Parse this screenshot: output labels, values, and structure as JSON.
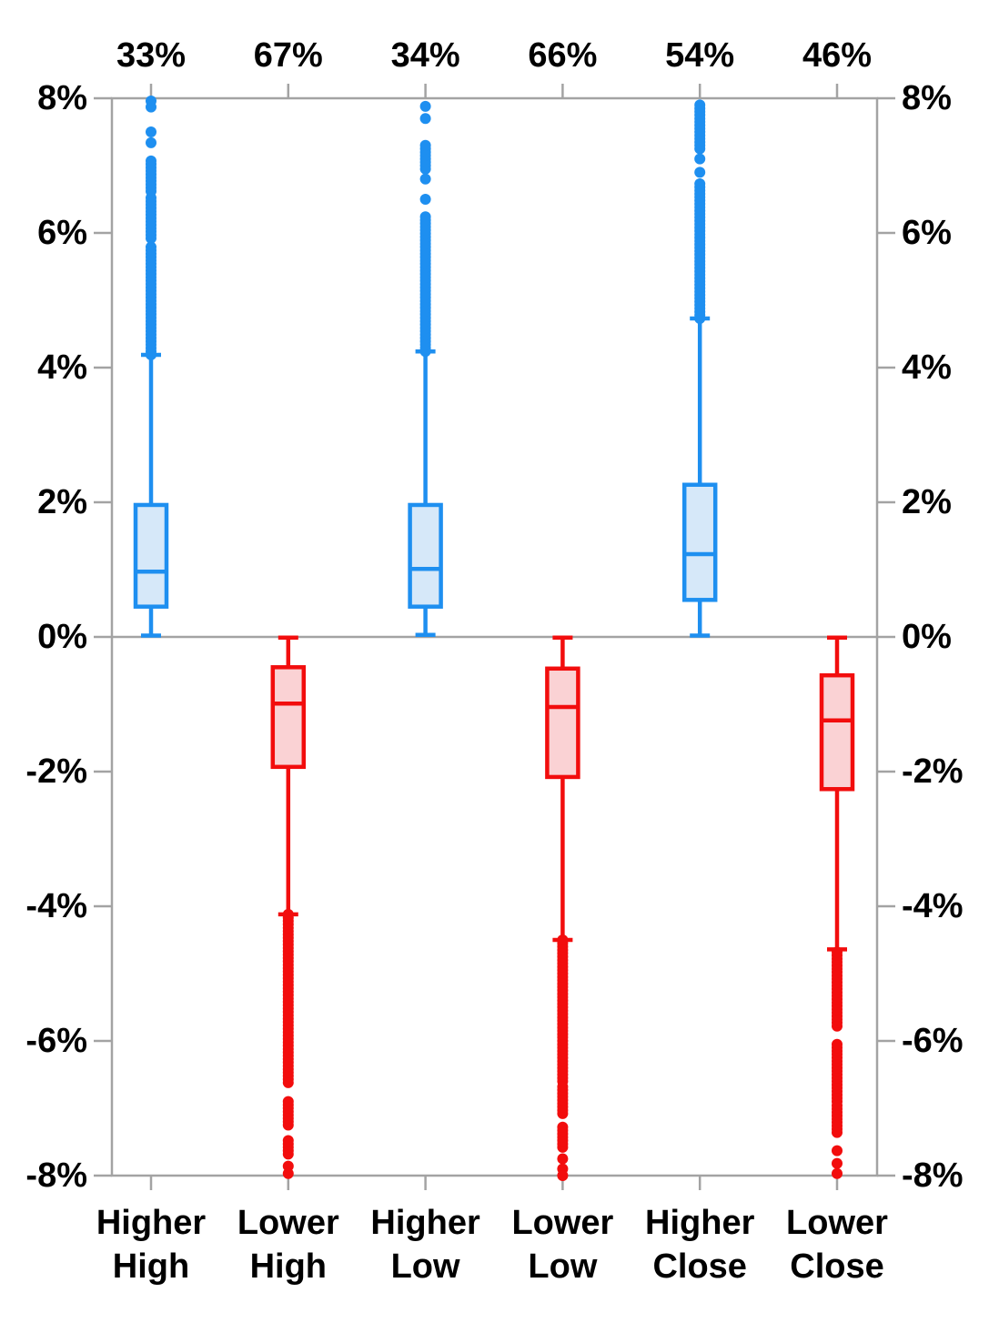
{
  "chart_data": {
    "type": "boxplot",
    "title": "",
    "y_axis": {
      "unit": "%",
      "min": -8,
      "max": 8,
      "tick_step": 2,
      "ticks": [
        8,
        6,
        4,
        2,
        0,
        -2,
        -4,
        -6,
        -8
      ],
      "tick_labels": [
        "8%",
        "6%",
        "4%",
        "2%",
        "0%",
        "-2%",
        "-4%",
        "-6%",
        "-8%"
      ],
      "shown_on": "both",
      "zero_gridline": true
    },
    "x_axis": {
      "top_labels": [
        "33%",
        "67%",
        "34%",
        "66%",
        "54%",
        "46%"
      ],
      "category_labels": [
        [
          "Higher",
          "High"
        ],
        [
          "Lower",
          "High"
        ],
        [
          "Higher",
          "Low"
        ],
        [
          "Lower",
          "Low"
        ],
        [
          "Higher",
          "Close"
        ],
        [
          "Lower",
          "Close"
        ]
      ]
    },
    "series": [
      {
        "name": "Higher High",
        "label_lines": [
          "Higher",
          "High"
        ],
        "top_label": "33%",
        "color_key": "blue",
        "box": {
          "q1": 0.45,
          "median": 0.97,
          "q3": 1.96,
          "whisker_low": 0.02,
          "whisker_high": 4.19
        },
        "outlier_segments": [
          [
            4.19,
            5.82
          ],
          [
            5.92,
            6.55
          ],
          [
            6.62,
            7.08
          ]
        ],
        "outlier_points": [
          7.34,
          7.5,
          7.87,
          7.96
        ]
      },
      {
        "name": "Lower High",
        "label_lines": [
          "Lower",
          "High"
        ],
        "top_label": "67%",
        "color_key": "red",
        "box": {
          "q1": -1.93,
          "median": -0.99,
          "q3": -0.45,
          "whisker_low": -4.12,
          "whisker_high": -0.01
        },
        "outlier_segments": [
          [
            -6.62,
            -4.12
          ],
          [
            -7.25,
            -6.88
          ],
          [
            -7.68,
            -7.45
          ]
        ],
        "outlier_points": [
          -7.86,
          -7.97
        ]
      },
      {
        "name": "Higher Low",
        "label_lines": [
          "Higher",
          "Low"
        ],
        "top_label": "34%",
        "color_key": "blue",
        "box": {
          "q1": 0.45,
          "median": 1.01,
          "q3": 1.96,
          "whisker_low": 0.03,
          "whisker_high": 4.24
        },
        "outlier_segments": [
          [
            4.24,
            6.28
          ],
          [
            6.95,
            7.3
          ]
        ],
        "outlier_points": [
          6.5,
          6.8,
          7.7,
          7.88
        ]
      },
      {
        "name": "Lower Low",
        "label_lines": [
          "Lower",
          "Low"
        ],
        "top_label": "66%",
        "color_key": "red",
        "box": {
          "q1": -2.08,
          "median": -1.04,
          "q3": -0.47,
          "whisker_low": -4.5,
          "whisker_high": -0.01
        },
        "outlier_segments": [
          [
            -6.6,
            -4.5
          ],
          [
            -7.08,
            -6.65
          ],
          [
            -7.58,
            -7.25
          ]
        ],
        "outlier_points": [
          -7.75,
          -7.9,
          -8.0
        ]
      },
      {
        "name": "Higher Close",
        "label_lines": [
          "Higher",
          "Close"
        ],
        "top_label": "54%",
        "color_key": "blue",
        "box": {
          "q1": 0.55,
          "median": 1.23,
          "q3": 2.26,
          "whisker_low": 0.02,
          "whisker_high": 4.73
        },
        "outlier_segments": [
          [
            4.73,
            6.73
          ],
          [
            7.25,
            7.93
          ]
        ],
        "outlier_points": [
          6.9,
          7.1
        ]
      },
      {
        "name": "Lower Close",
        "label_lines": [
          "Lower",
          "Close"
        ],
        "top_label": "46%",
        "color_key": "red",
        "box": {
          "q1": -2.26,
          "median": -1.24,
          "q3": -0.57,
          "whisker_low": -4.64,
          "whisker_high": -0.01
        },
        "outlier_segments": [
          [
            -5.78,
            -4.64
          ],
          [
            -6.9,
            -6.02
          ],
          [
            -7.36,
            -6.96
          ]
        ],
        "outlier_points": [
          -7.63,
          -7.82,
          -7.97
        ]
      }
    ],
    "colors": {
      "blue_stroke": "#1E8FF0",
      "blue_fill": "#D6E8F9",
      "red_stroke": "#F20D0D",
      "red_fill": "#FAD2D4",
      "axis": "#A3A3A3",
      "text": "#000000",
      "background": "#FFFFFF"
    }
  }
}
